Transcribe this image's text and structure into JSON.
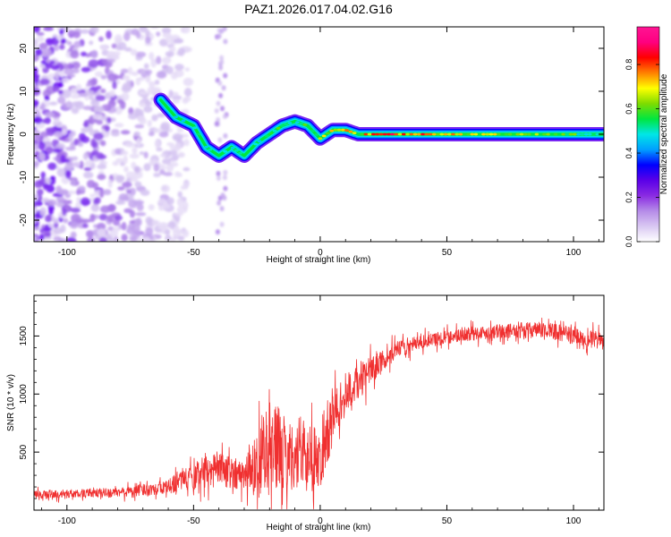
{
  "title": "PAZ1.2026.017.04.02.G16",
  "chart_data": [
    {
      "type": "heatmap",
      "title": "",
      "xlabel": "Height of straight line (km)",
      "ylabel": "Frequency (Hz)",
      "xlim": [
        -113,
        112
      ],
      "ylim": [
        -25,
        25
      ],
      "x_ticks": [
        -100,
        -50,
        0,
        50,
        100
      ],
      "y_ticks": [
        -20,
        -10,
        0,
        10,
        20
      ],
      "colorbar": {
        "label": "Normalized spectral amplitude",
        "range": [
          0,
          0.97
        ],
        "ticks": [
          0.0,
          0.2,
          0.4,
          0.6,
          0.8
        ],
        "tick_labels": [
          "0.0",
          "0.2",
          "0.4",
          "0.6",
          "0.8"
        ],
        "colormap": [
          "#ffffff",
          "#d9c8f2",
          "#b58be8",
          "#8a2be2",
          "#5a00e8",
          "#0000ff",
          "#00a0ff",
          "#00e6e6",
          "#00e640",
          "#7fdc00",
          "#ffff00",
          "#ff8000",
          "#ff0000",
          "#ff0080",
          "#ff1493"
        ]
      },
      "ridge": {
        "x": [
          -63,
          -57,
          -50,
          -45,
          -40,
          -35,
          -30,
          -25,
          -20,
          -15,
          -10,
          -5,
          0,
          5,
          10,
          15,
          20,
          40,
          60,
          80,
          100,
          112
        ],
        "y": [
          8,
          4,
          2,
          -3,
          -5,
          -3,
          -5,
          -2,
          0,
          2,
          3,
          2,
          -1,
          1,
          1,
          0,
          0,
          0,
          0,
          0,
          0,
          0
        ],
        "peak_amplitude": [
          0.3,
          0.4,
          0.45,
          0.5,
          0.4,
          0.45,
          0.5,
          0.45,
          0.5,
          0.55,
          0.5,
          0.55,
          0.6,
          0.75,
          0.7,
          0.6,
          0.8,
          0.75,
          0.65,
          0.6,
          0.55,
          0.5
        ]
      },
      "noise_region_x": [
        -113,
        -60
      ],
      "line_color": "#8a2be2"
    },
    {
      "type": "line",
      "title": "",
      "xlabel": "Height of straight line (km)",
      "ylabel": "SNR (10 * v/v)",
      "xlim": [
        -113,
        112
      ],
      "ylim": [
        0,
        1850
      ],
      "x_ticks": [
        -100,
        -50,
        0,
        50,
        100
      ],
      "y_ticks": [
        500,
        1000,
        1500
      ],
      "color": "#f03030",
      "series": [
        {
          "name": "SNR",
          "x": [
            -113,
            -100,
            -80,
            -60,
            -50,
            -40,
            -30,
            -25,
            -20,
            -15,
            -10,
            -5,
            0,
            5,
            10,
            15,
            20,
            30,
            40,
            50,
            60,
            70,
            80,
            90,
            100,
            112
          ],
          "mean": [
            130,
            140,
            150,
            200,
            300,
            350,
            300,
            400,
            600,
            500,
            450,
            500,
            420,
            800,
            1000,
            1100,
            1200,
            1380,
            1450,
            1490,
            1520,
            1540,
            1550,
            1550,
            1500,
            1450
          ],
          "spread": [
            60,
            60,
            70,
            100,
            200,
            250,
            200,
            450,
            700,
            550,
            450,
            500,
            400,
            400,
            300,
            250,
            200,
            120,
            100,
            100,
            100,
            100,
            110,
            120,
            120,
            130
          ]
        }
      ]
    }
  ]
}
